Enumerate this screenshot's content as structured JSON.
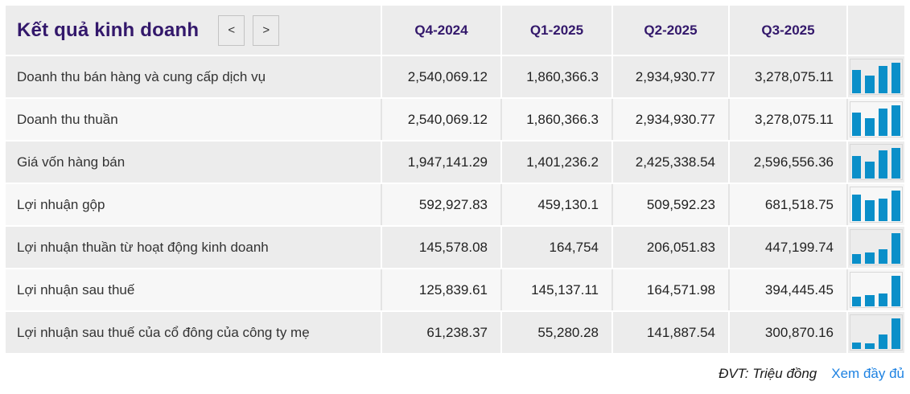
{
  "colors": {
    "title_purple": "#33186b",
    "bar_blue": "#0a8fc9",
    "link_blue": "#1d82e2",
    "row_gray": "#ececec",
    "row_light": "#f7f7f7"
  },
  "header": {
    "title": "Kết quả kinh doanh",
    "prev_label": "<",
    "next_label": ">",
    "columns": [
      "Q4-2024",
      "Q1-2025",
      "Q2-2025",
      "Q3-2025"
    ]
  },
  "rows": [
    {
      "label": "Doanh thu bán hàng và cung cấp dịch vụ",
      "values": [
        "2,540,069.12",
        "1,860,366.3",
        "2,934,930.77",
        "3,278,075.11"
      ],
      "raw": [
        2540069.12,
        1860366.3,
        2934930.77,
        3278075.11
      ]
    },
    {
      "label": "Doanh thu thuần",
      "values": [
        "2,540,069.12",
        "1,860,366.3",
        "2,934,930.77",
        "3,278,075.11"
      ],
      "raw": [
        2540069.12,
        1860366.3,
        2934930.77,
        3278075.11
      ]
    },
    {
      "label": "Giá vốn hàng bán",
      "values": [
        "1,947,141.29",
        "1,401,236.2",
        "2,425,338.54",
        "2,596,556.36"
      ],
      "raw": [
        1947141.29,
        1401236.2,
        2425338.54,
        2596556.36
      ]
    },
    {
      "label": "Lợi nhuận gộp",
      "values": [
        "592,927.83",
        "459,130.1",
        "509,592.23",
        "681,518.75"
      ],
      "raw": [
        592927.83,
        459130.1,
        509592.23,
        681518.75
      ]
    },
    {
      "label": "Lợi nhuận thuần từ hoạt động kinh doanh",
      "values": [
        "145,578.08",
        "164,754",
        "206,051.83",
        "447,199.74"
      ],
      "raw": [
        145578.08,
        164754,
        206051.83,
        447199.74
      ]
    },
    {
      "label": "Lợi nhuận sau thuế",
      "values": [
        "125,839.61",
        "145,137.11",
        "164,571.98",
        "394,445.45"
      ],
      "raw": [
        125839.61,
        145137.11,
        164571.98,
        394445.45
      ]
    },
    {
      "label": "Lợi nhuận sau thuế của cổ đông của công ty mẹ",
      "values": [
        "61,238.37",
        "55,280.28",
        "141,887.54",
        "300,870.16"
      ],
      "raw": [
        61238.37,
        55280.28,
        141887.54,
        300870.16
      ]
    }
  ],
  "chart_data": {
    "type": "table",
    "title": "Kết quả kinh doanh",
    "unit": "Triệu đồng",
    "categories": [
      "Q4-2024",
      "Q1-2025",
      "Q2-2025",
      "Q3-2025"
    ],
    "series": [
      {
        "name": "Doanh thu bán hàng và cung cấp dịch vụ",
        "values": [
          2540069.12,
          1860366.3,
          2934930.77,
          3278075.11
        ]
      },
      {
        "name": "Doanh thu thuần",
        "values": [
          2540069.12,
          1860366.3,
          2934930.77,
          3278075.11
        ]
      },
      {
        "name": "Giá vốn hàng bán",
        "values": [
          1947141.29,
          1401236.2,
          2425338.54,
          2596556.36
        ]
      },
      {
        "name": "Lợi nhuận gộp",
        "values": [
          592927.83,
          459130.1,
          509592.23,
          681518.75
        ]
      },
      {
        "name": "Lợi nhuận thuần từ hoạt động kinh doanh",
        "values": [
          145578.08,
          164754,
          206051.83,
          447199.74
        ]
      },
      {
        "name": "Lợi nhuận sau thuế",
        "values": [
          125839.61,
          145137.11,
          164571.98,
          394445.45
        ]
      },
      {
        "name": "Lợi nhuận sau thuế của cổ đông của công ty mẹ",
        "values": [
          61238.37,
          55280.28,
          141887.54,
          300870.16
        ]
      }
    ],
    "sparkline_note": "each row shows a mini bar chart of its 4 quarterly values scaled to the row maximum"
  },
  "footer": {
    "unit": "ĐVT: Triệu đồng",
    "link": "Xem đầy đủ"
  }
}
